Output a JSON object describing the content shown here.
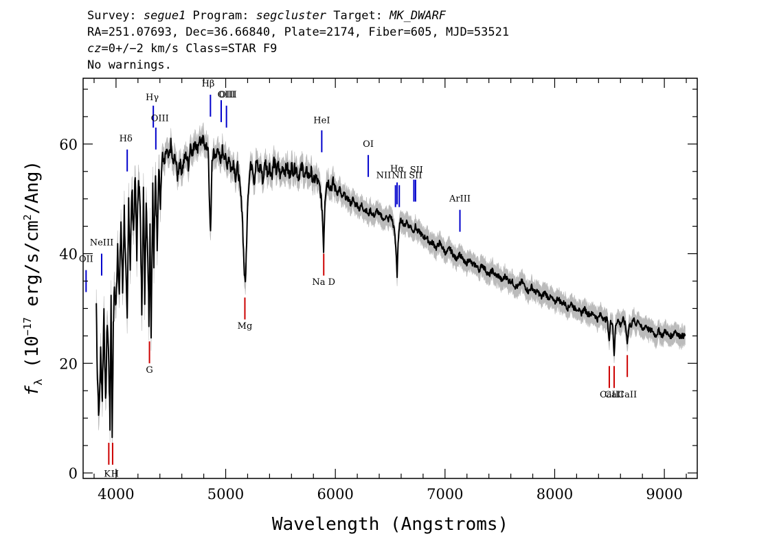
{
  "header": {
    "line1": {
      "survey_label": "Survey: ",
      "survey": "segue1",
      "program_label": " Program: ",
      "program": "segcluster",
      "target_label": " Target: ",
      "target": "MK_DWARF"
    },
    "line2": "RA=251.07693, Dec=36.66840, Plate=2174, Fiber=605, MJD=53521",
    "line3": {
      "cz": "cz",
      "rest": "=0+/−2 km/s Class=STAR F9"
    },
    "line4": "No warnings."
  },
  "chart_data": {
    "type": "line",
    "xlabel": "Wavelength (Angstroms)",
    "ylabel_main": "f",
    "ylabel_sub": "λ",
    "ylabel_rest_a": " (10",
    "ylabel_exp": "−17",
    "ylabel_rest_b": " erg/s/cm",
    "ylabel_exp2": "2",
    "ylabel_rest_c": "/Ang)",
    "xlim": [
      3700,
      9300
    ],
    "ylim": [
      -1,
      72
    ],
    "xticks": [
      "4000",
      "5000",
      "6000",
      "7000",
      "8000",
      "9000"
    ],
    "yticks": [
      "0",
      "20",
      "40",
      "60"
    ],
    "flux_color": "#000000",
    "error_color": "#bbbbbb",
    "emission_color": "#0000cc",
    "absorption_color": "#cc0000",
    "series": [
      {
        "values": [
          [
            3820,
            31
          ],
          [
            3830,
            18
          ],
          [
            3845,
            10
          ],
          [
            3860,
            22
          ],
          [
            3875,
            14
          ],
          [
            3890,
            30
          ],
          [
            3905,
            12
          ],
          [
            3920,
            28
          ],
          [
            3935,
            20
          ],
          [
            3945,
            8
          ],
          [
            3955,
            33
          ],
          [
            3965,
            7
          ],
          [
            3975,
            26
          ],
          [
            3985,
            34
          ],
          [
            4000,
            30
          ],
          [
            4015,
            42
          ],
          [
            4030,
            32
          ],
          [
            4045,
            46
          ],
          [
            4060,
            33
          ],
          [
            4075,
            48
          ],
          [
            4090,
            36
          ],
          [
            4102,
            27
          ],
          [
            4115,
            50
          ],
          [
            4130,
            38
          ],
          [
            4145,
            52
          ],
          [
            4160,
            44
          ],
          [
            4175,
            54
          ],
          [
            4190,
            40
          ],
          [
            4205,
            55
          ],
          [
            4220,
            48
          ],
          [
            4235,
            30
          ],
          [
            4250,
            52
          ],
          [
            4262,
            32
          ],
          [
            4275,
            50
          ],
          [
            4290,
            40
          ],
          [
            4300,
            28
          ],
          [
            4310,
            45
          ],
          [
            4320,
            26
          ],
          [
            4335,
            52
          ],
          [
            4345,
            38
          ],
          [
            4360,
            55
          ],
          [
            4375,
            42
          ],
          [
            4390,
            57
          ],
          [
            4405,
            48
          ],
          [
            4420,
            58
          ],
          [
            4440,
            56
          ],
          [
            4460,
            59
          ],
          [
            4480,
            57
          ],
          [
            4500,
            60
          ],
          [
            4520,
            56
          ],
          [
            4540,
            58
          ],
          [
            4560,
            54
          ],
          [
            4580,
            57
          ],
          [
            4600,
            55
          ],
          [
            4620,
            57
          ],
          [
            4640,
            58
          ],
          [
            4660,
            56
          ],
          [
            4680,
            60
          ],
          [
            4700,
            58
          ],
          [
            4720,
            61
          ],
          [
            4740,
            59
          ],
          [
            4760,
            61
          ],
          [
            4780,
            60
          ],
          [
            4800,
            61
          ],
          [
            4820,
            59
          ],
          [
            4840,
            60
          ],
          [
            4850,
            50
          ],
          [
            4862,
            44
          ],
          [
            4875,
            56
          ],
          [
            4890,
            59
          ],
          [
            4910,
            57
          ],
          [
            4930,
            60
          ],
          [
            4950,
            56
          ],
          [
            4970,
            59
          ],
          [
            4990,
            58
          ],
          [
            5010,
            56
          ],
          [
            5030,
            58
          ],
          [
            5050,
            55
          ],
          [
            5070,
            57
          ],
          [
            5090,
            54
          ],
          [
            5110,
            56
          ],
          [
            5130,
            52
          ],
          [
            5150,
            48
          ],
          [
            5167,
            38
          ],
          [
            5173,
            35
          ],
          [
            5183,
            36
          ],
          [
            5200,
            50
          ],
          [
            5220,
            55
          ],
          [
            5240,
            57
          ],
          [
            5260,
            53
          ],
          [
            5280,
            57
          ],
          [
            5300,
            55
          ],
          [
            5320,
            56
          ],
          [
            5340,
            53
          ],
          [
            5360,
            57
          ],
          [
            5380,
            55
          ],
          [
            5400,
            56
          ],
          [
            5420,
            54
          ],
          [
            5440,
            57
          ],
          [
            5460,
            55
          ],
          [
            5480,
            56
          ],
          [
            5500,
            54
          ],
          [
            5520,
            56
          ],
          [
            5540,
            55
          ],
          [
            5560,
            56
          ],
          [
            5580,
            54
          ],
          [
            5600,
            56
          ],
          [
            5620,
            55
          ],
          [
            5640,
            56
          ],
          [
            5660,
            54
          ],
          [
            5680,
            55
          ],
          [
            5700,
            56
          ],
          [
            5720,
            54
          ],
          [
            5740,
            55
          ],
          [
            5760,
            54
          ],
          [
            5780,
            55
          ],
          [
            5800,
            53
          ],
          [
            5820,
            54
          ],
          [
            5840,
            53
          ],
          [
            5860,
            52
          ],
          [
            5880,
            48
          ],
          [
            5893,
            41
          ],
          [
            5905,
            50
          ],
          [
            5920,
            53
          ],
          [
            5940,
            53
          ],
          [
            5960,
            52
          ],
          [
            5980,
            53
          ],
          [
            6000,
            52
          ],
          [
            6020,
            51
          ],
          [
            6040,
            52
          ],
          [
            6060,
            50
          ],
          [
            6080,
            51
          ],
          [
            6100,
            50
          ],
          [
            6120,
            50
          ],
          [
            6140,
            49
          ],
          [
            6160,
            50
          ],
          [
            6180,
            49
          ],
          [
            6200,
            49
          ],
          [
            6220,
            48
          ],
          [
            6240,
            49
          ],
          [
            6260,
            48
          ],
          [
            6280,
            48
          ],
          [
            6300,
            47
          ],
          [
            6320,
            48
          ],
          [
            6340,
            47
          ],
          [
            6360,
            47
          ],
          [
            6380,
            48
          ],
          [
            6400,
            47
          ],
          [
            6420,
            47
          ],
          [
            6440,
            46
          ],
          [
            6460,
            47
          ],
          [
            6480,
            46
          ],
          [
            6500,
            47
          ],
          [
            6520,
            46
          ],
          [
            6540,
            44
          ],
          [
            6555,
            40
          ],
          [
            6563,
            36
          ],
          [
            6572,
            42
          ],
          [
            6590,
            46
          ],
          [
            6610,
            46
          ],
          [
            6630,
            45
          ],
          [
            6650,
            46
          ],
          [
            6670,
            45
          ],
          [
            6690,
            45
          ],
          [
            6710,
            44
          ],
          [
            6730,
            45
          ],
          [
            6750,
            44
          ],
          [
            6770,
            44
          ],
          [
            6800,
            43
          ],
          [
            6830,
            43
          ],
          [
            6860,
            42
          ],
          [
            6890,
            42
          ],
          [
            6920,
            41
          ],
          [
            6950,
            42
          ],
          [
            6980,
            41
          ],
          [
            7010,
            40
          ],
          [
            7040,
            41
          ],
          [
            7070,
            40
          ],
          [
            7100,
            39
          ],
          [
            7130,
            40
          ],
          [
            7160,
            39
          ],
          [
            7190,
            38
          ],
          [
            7220,
            39
          ],
          [
            7250,
            38
          ],
          [
            7280,
            38
          ],
          [
            7310,
            37
          ],
          [
            7340,
            38
          ],
          [
            7370,
            37
          ],
          [
            7400,
            36
          ],
          [
            7430,
            37
          ],
          [
            7460,
            36
          ],
          [
            7490,
            36
          ],
          [
            7520,
            35
          ],
          [
            7550,
            36
          ],
          [
            7580,
            35
          ],
          [
            7610,
            35
          ],
          [
            7640,
            34
          ],
          [
            7670,
            34
          ],
          [
            7700,
            35
          ],
          [
            7730,
            34
          ],
          [
            7760,
            33
          ],
          [
            7790,
            34
          ],
          [
            7820,
            33
          ],
          [
            7850,
            33
          ],
          [
            7880,
            32
          ],
          [
            7910,
            33
          ],
          [
            7940,
            32
          ],
          [
            7970,
            32
          ],
          [
            8000,
            31
          ],
          [
            8030,
            32
          ],
          [
            8060,
            31
          ],
          [
            8090,
            31
          ],
          [
            8120,
            30
          ],
          [
            8150,
            31
          ],
          [
            8180,
            30
          ],
          [
            8210,
            30
          ],
          [
            8240,
            29
          ],
          [
            8270,
            30
          ],
          [
            8300,
            29
          ],
          [
            8330,
            29
          ],
          [
            8360,
            29
          ],
          [
            8390,
            28
          ],
          [
            8420,
            29
          ],
          [
            8450,
            28
          ],
          [
            8480,
            28
          ],
          [
            8498,
            24
          ],
          [
            8510,
            28
          ],
          [
            8530,
            27
          ],
          [
            8542,
            21
          ],
          [
            8555,
            27
          ],
          [
            8575,
            28
          ],
          [
            8600,
            27
          ],
          [
            8625,
            28
          ],
          [
            8645,
            27
          ],
          [
            8662,
            24
          ],
          [
            8680,
            27
          ],
          [
            8700,
            27
          ],
          [
            8720,
            28
          ],
          [
            8740,
            27
          ],
          [
            8760,
            28
          ],
          [
            8780,
            27
          ],
          [
            8800,
            26
          ],
          [
            8830,
            27
          ],
          [
            8860,
            26
          ],
          [
            8890,
            26
          ],
          [
            8920,
            25
          ],
          [
            8950,
            26
          ],
          [
            8980,
            25
          ],
          [
            9010,
            26
          ],
          [
            9040,
            25
          ],
          [
            9070,
            25
          ],
          [
            9100,
            26
          ],
          [
            9130,
            25
          ],
          [
            9160,
            25
          ],
          [
            9190,
            25
          ]
        ]
      }
    ],
    "emission_lines": [
      {
        "label": "OII",
        "x": 3727,
        "y0": 33,
        "y1": 37,
        "lx": 3727,
        "ly": 38.5
      },
      {
        "label": "NeIII",
        "x": 3869,
        "y0": 36,
        "y1": 40,
        "lx": 3869,
        "ly": 41.5
      },
      {
        "label": "Hδ",
        "x": 4102,
        "y0": 55,
        "y1": 59,
        "lx": 4090,
        "ly": 60.5
      },
      {
        "label": "Hγ",
        "x": 4340,
        "y0": 63,
        "y1": 67,
        "lx": 4330,
        "ly": 68.0
      },
      {
        "label": "OIII",
        "x": 4363,
        "y0": 59,
        "y1": 63,
        "lx": 4400,
        "ly": 64.2
      },
      {
        "label": "Hβ",
        "x": 4861,
        "y0": 65,
        "y1": 69,
        "lx": 4840,
        "ly": 70.5
      },
      {
        "label": "OIII",
        "x": 4959,
        "y0": 64,
        "y1": 68,
        "lx": 5020,
        "ly": 68.5
      },
      {
        "label": "OIII",
        "x": 5007,
        "y0": 63,
        "y1": 67,
        "lx": 5007,
        "ly": 68.5
      },
      {
        "label": "HeI",
        "x": 5876,
        "y0": 58.5,
        "y1": 62.5,
        "lx": 5876,
        "ly": 63.8
      },
      {
        "label": "OI",
        "x": 6300,
        "y0": 54,
        "y1": 58,
        "lx": 6300,
        "ly": 59.5
      },
      {
        "label": "NII",
        "x": 6548,
        "y0": 48.5,
        "y1": 52.5,
        "lx": 6440,
        "ly": 53.8
      },
      {
        "label": "Hα",
        "x": 6563,
        "y0": 49,
        "y1": 53,
        "lx": 6563,
        "ly": 55.0
      },
      {
        "label": "NII",
        "x": 6583,
        "y0": 48.5,
        "y1": 52.5,
        "lx": 6583,
        "ly": 53.8
      },
      {
        "label": "SII",
        "x": 6716,
        "y0": 49.5,
        "y1": 53.5,
        "lx": 6740,
        "ly": 54.8
      },
      {
        "label": "SII",
        "x": 6731,
        "y0": 49.5,
        "y1": 53.5,
        "lx": 6731,
        "ly": 53.8
      },
      {
        "label": "ArIII",
        "x": 7136,
        "y0": 44,
        "y1": 48,
        "lx": 7136,
        "ly": 49.5
      }
    ],
    "absorption_lines": [
      {
        "label": "K",
        "x": 3934,
        "y0": 1.5,
        "y1": 5.5,
        "lx": 3920,
        "ly": -0.7
      },
      {
        "label": "H",
        "x": 3969,
        "y0": 1.5,
        "y1": 5.5,
        "lx": 3990,
        "ly": -0.7
      },
      {
        "label": "G",
        "x": 4305,
        "y0": 20,
        "y1": 24,
        "lx": 4305,
        "ly": 18.3
      },
      {
        "label": "Mg",
        "x": 5175,
        "y0": 28,
        "y1": 32,
        "lx": 5175,
        "ly": 26.3
      },
      {
        "label": "Na D",
        "x": 5894,
        "y0": 36,
        "y1": 40,
        "lx": 5894,
        "ly": 34.3
      },
      {
        "label": "CaII",
        "x": 8498,
        "y0": 15.5,
        "y1": 19.5,
        "lx": 8498,
        "ly": 13.8
      },
      {
        "label": "CaII",
        "x": 8542,
        "y0": 15.5,
        "y1": 19.5,
        "lx": 8542,
        "ly": 13.8
      },
      {
        "label": "CaII",
        "x": 8662,
        "y0": 17.5,
        "y1": 21.5,
        "lx": 8662,
        "ly": 13.8
      }
    ]
  }
}
